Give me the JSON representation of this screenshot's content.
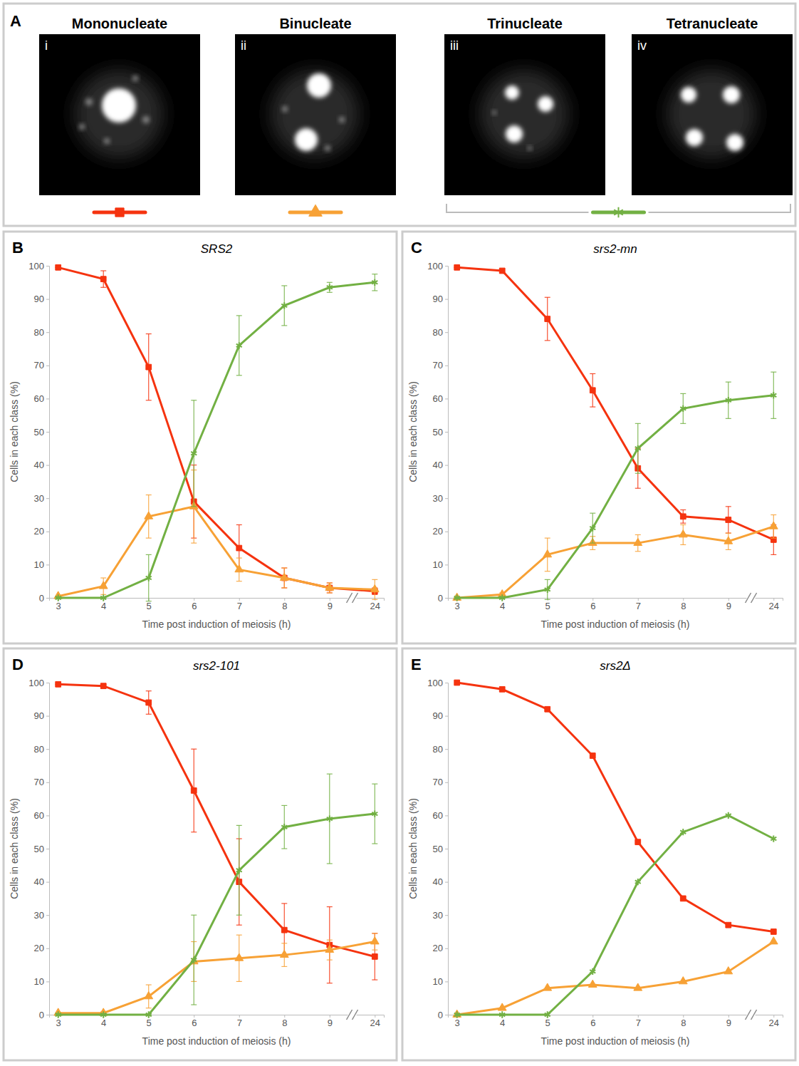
{
  "panel_a": {
    "letter": "A",
    "images": [
      {
        "numeral": "i",
        "label": "Mononucleate"
      },
      {
        "numeral": "ii",
        "label": "Binucleate"
      },
      {
        "numeral": "iii",
        "label": "Trinucleate"
      },
      {
        "numeral": "iv",
        "label": "Tetranucleate"
      }
    ]
  },
  "chart_data": [
    {
      "type": "line",
      "panel": "B",
      "title": "SRS2",
      "x_label": "Time post induction of meiosis (h)",
      "y_label": "Cells in each class (%)",
      "categories": [
        3,
        4,
        5,
        6,
        7,
        8,
        9,
        24
      ],
      "ylim": [
        0,
        100
      ],
      "yticks": [
        0,
        10,
        20,
        30,
        40,
        50,
        60,
        70,
        80,
        90,
        100
      ],
      "grid": false,
      "series": [
        {
          "color": "#f5330f",
          "marker": "square",
          "values": [
            99.5,
            96,
            69.5,
            29,
            15,
            6,
            3,
            2
          ],
          "errors": [
            0,
            2.5,
            10,
            11,
            7,
            3,
            1.5,
            1
          ]
        },
        {
          "color": "#f7a135",
          "marker": "triangle",
          "values": [
            0.5,
            3.5,
            24.5,
            27.5,
            8.5,
            6,
            3,
            2.5
          ],
          "errors": [
            0,
            2.5,
            6.5,
            11,
            3.5,
            3,
            1.5,
            3
          ]
        },
        {
          "color": "#72b043",
          "marker": "asterisk",
          "values": [
            0,
            0,
            6,
            43.5,
            76,
            88,
            93.5,
            95
          ],
          "errors": [
            0,
            0,
            7,
            16,
            9,
            6,
            1.5,
            2.5
          ]
        }
      ]
    },
    {
      "type": "line",
      "panel": "C",
      "title": "srs2-mn",
      "x_label": "Time post induction of meiosis (h)",
      "y_label": "Cells in each class (%)",
      "categories": [
        3,
        4,
        5,
        6,
        7,
        8,
        9,
        24
      ],
      "ylim": [
        0,
        100
      ],
      "yticks": [
        0,
        10,
        20,
        30,
        40,
        50,
        60,
        70,
        80,
        90,
        100
      ],
      "grid": false,
      "series": [
        {
          "color": "#f5330f",
          "marker": "square",
          "values": [
            99.5,
            98.5,
            84,
            62.5,
            39,
            24.5,
            23.5,
            17.5
          ],
          "errors": [
            0,
            0.5,
            6.5,
            5,
            6,
            2,
            4,
            4.5
          ]
        },
        {
          "color": "#f7a135",
          "marker": "triangle",
          "values": [
            0,
            1,
            13,
            16.5,
            16.5,
            19,
            17,
            21.5
          ],
          "errors": [
            0,
            0.5,
            5,
            2,
            2.5,
            3,
            2.5,
            3.5
          ]
        },
        {
          "color": "#72b043",
          "marker": "asterisk",
          "values": [
            0,
            0,
            2.5,
            21,
            45,
            57,
            59.5,
            61
          ],
          "errors": [
            0,
            0,
            3,
            4.5,
            7.5,
            4.5,
            5.5,
            7
          ]
        }
      ]
    },
    {
      "type": "line",
      "panel": "D",
      "title": "srs2-101",
      "x_label": "Time post induction of meiosis (h)",
      "y_label": "Cells in each class (%)",
      "categories": [
        3,
        4,
        5,
        6,
        7,
        8,
        9,
        24
      ],
      "ylim": [
        0,
        100
      ],
      "yticks": [
        0,
        10,
        20,
        30,
        40,
        50,
        60,
        70,
        80,
        90,
        100
      ],
      "grid": false,
      "series": [
        {
          "color": "#f5330f",
          "marker": "square",
          "values": [
            99.5,
            99,
            94,
            67.5,
            40,
            25.5,
            21,
            17.5
          ],
          "errors": [
            0,
            0.5,
            3.5,
            12.5,
            13,
            8,
            11.5,
            7
          ]
        },
        {
          "color": "#f7a135",
          "marker": "triangle",
          "values": [
            0.5,
            0.5,
            5.5,
            16,
            17,
            18,
            19.5,
            22
          ],
          "errors": [
            0,
            0.5,
            3.5,
            6,
            7,
            3.5,
            3,
            2.5
          ]
        },
        {
          "color": "#72b043",
          "marker": "asterisk",
          "values": [
            0,
            0,
            0,
            16.5,
            43.5,
            56.5,
            59,
            60.5
          ],
          "errors": [
            0,
            0,
            0,
            13.5,
            13.5,
            6.5,
            13.5,
            9
          ]
        }
      ]
    },
    {
      "type": "line",
      "panel": "E",
      "title": "srs2Δ",
      "x_label": "Time post induction of meiosis (h)",
      "y_label": "Cells in each class (%)",
      "categories": [
        3,
        4,
        5,
        6,
        7,
        8,
        9,
        24
      ],
      "ylim": [
        0,
        100
      ],
      "yticks": [
        0,
        10,
        20,
        30,
        40,
        50,
        60,
        70,
        80,
        90,
        100
      ],
      "grid": false,
      "series": [
        {
          "color": "#f5330f",
          "marker": "square",
          "values": [
            100,
            98,
            92,
            78,
            52,
            35,
            27,
            25
          ]
        },
        {
          "color": "#f7a135",
          "marker": "triangle",
          "values": [
            0,
            2,
            8,
            9,
            8,
            10,
            13,
            22
          ]
        },
        {
          "color": "#72b043",
          "marker": "asterisk",
          "values": [
            0,
            0,
            0,
            13,
            40,
            55,
            60,
            53
          ]
        }
      ]
    }
  ]
}
